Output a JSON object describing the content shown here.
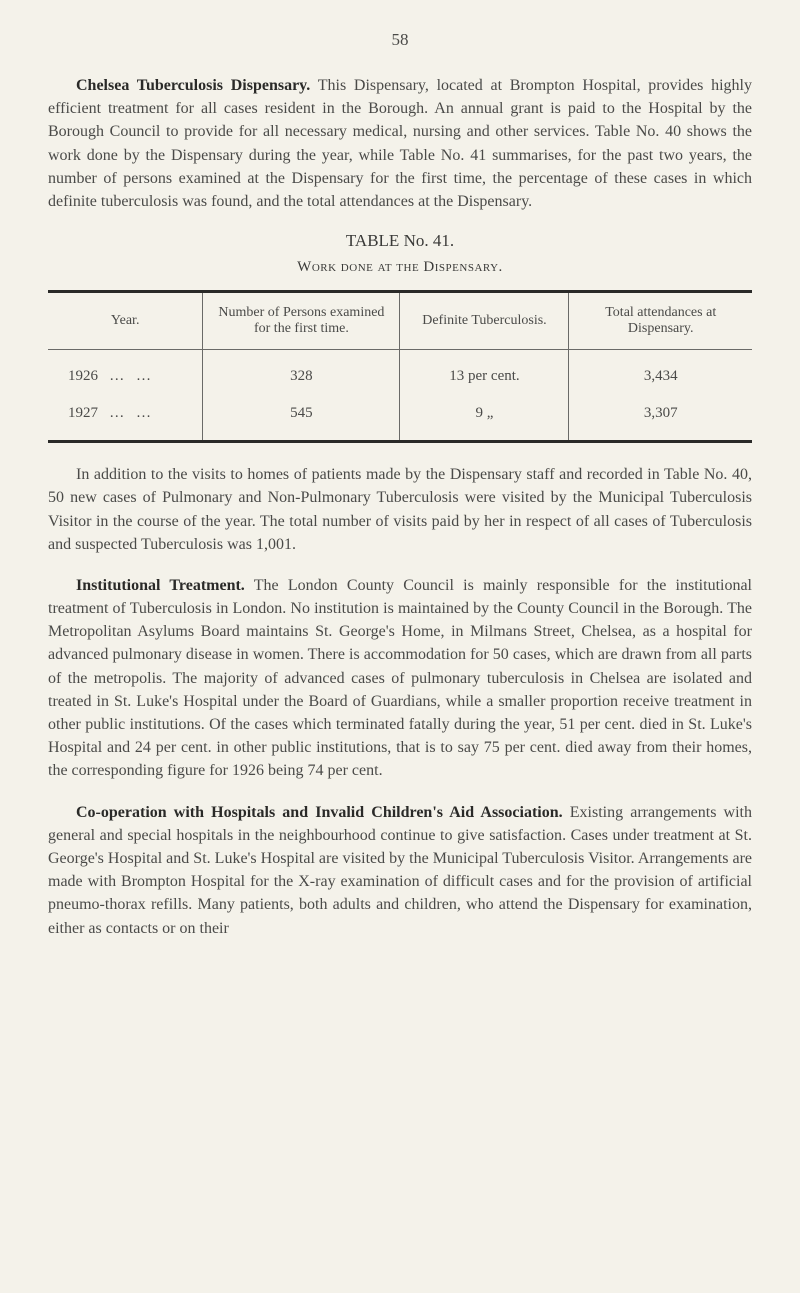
{
  "page_number": "58",
  "section1": {
    "title": "Chelsea Tuberculosis Dispensary.",
    "body": "This Dispensary, located at Brompton Hospital, provides highly efficient treatment for all cases resident in the Borough. An annual grant is paid to the Hospital by the Borough Council to provide for all necessary medical, nursing and other services. Table No. 40 shows the work done by the Dispensary during the year, while Table No. 41 summarises, for the past two years, the number of persons examined at the Dispensary for the first time, the percentage of these cases in which definite tuberculosis was found, and the total attendances at the Dispensary."
  },
  "table": {
    "title": "TABLE No. 41.",
    "subtitle": "Work done at the Dispensary.",
    "columns": [
      "Year.",
      "Number of Persons examined for the first time.",
      "Definite Tuberculosis.",
      "Total attendances at Dispensary."
    ],
    "col_widths": [
      "22%",
      "28%",
      "24%",
      "26%"
    ],
    "header_border_top": "3px",
    "header_border_bottom": "1px",
    "body_border_bottom": "3px",
    "rows": [
      {
        "year": "1926",
        "dots": "…   …",
        "examined": "328",
        "definite": "13 per cent.",
        "total": "3,434"
      },
      {
        "year": "1927",
        "dots": "…   …",
        "examined": "545",
        "definite": "9    „",
        "total": "3,307"
      }
    ]
  },
  "paragraph_after_table": "In addition to the visits to homes of patients made by the Dispensary staff and recorded in Table No. 40, 50 new cases of Pulmonary and Non-Pulmonary Tuberculosis were visited by the Municipal Tuberculosis Visitor in the course of the year. The total number of visits paid by her in respect of all cases of Tuberculosis and suspected Tuberculosis was 1,001.",
  "section2": {
    "title": "Institutional Treatment.",
    "body": "The London County Council is mainly responsible for the institutional treatment of Tuberculosis in London. No institution is maintained by the County Council in the Borough. The Metropolitan Asylums Board maintains St. George's Home, in Milmans Street, Chelsea, as a hospital for advanced pulmonary disease in women. There is accommodation for 50 cases, which are drawn from all parts of the metropolis. The majority of advanced cases of pulmonary tuberculosis in Chelsea are isolated and treated in St. Luke's Hospital under the Board of Guardians, while a smaller proportion receive treatment in other public institutions. Of the cases which terminated fatally during the year, 51 per cent. died in St. Luke's Hospital and 24 per cent. in other public institutions, that is to say 75 per cent. died away from their homes, the corresponding figure for 1926 being 74 per cent."
  },
  "section3": {
    "title": "Co-operation with Hospitals and Invalid Children's Aid Association.",
    "body": "Existing arrangements with general and special hospitals in the neighbourhood continue to give satisfaction. Cases under treatment at St. George's Hospital and St. Luke's Hospital are visited by the Municipal Tuberculosis Visitor. Arrangements are made with Brompton Hospital for the X-ray examination of difficult cases and for the provision of artificial pneumo-thorax refills. Many patients, both adults and children, who attend the Dispensary for examination, either as contacts or on their"
  },
  "colors": {
    "background": "#f4f2ea",
    "text": "#4a4a48",
    "bold_text": "#2a2a28",
    "border": "#6a6a68"
  },
  "fonts": {
    "body_size": 16,
    "table_header_size": 14,
    "table_cell_size": 15
  }
}
